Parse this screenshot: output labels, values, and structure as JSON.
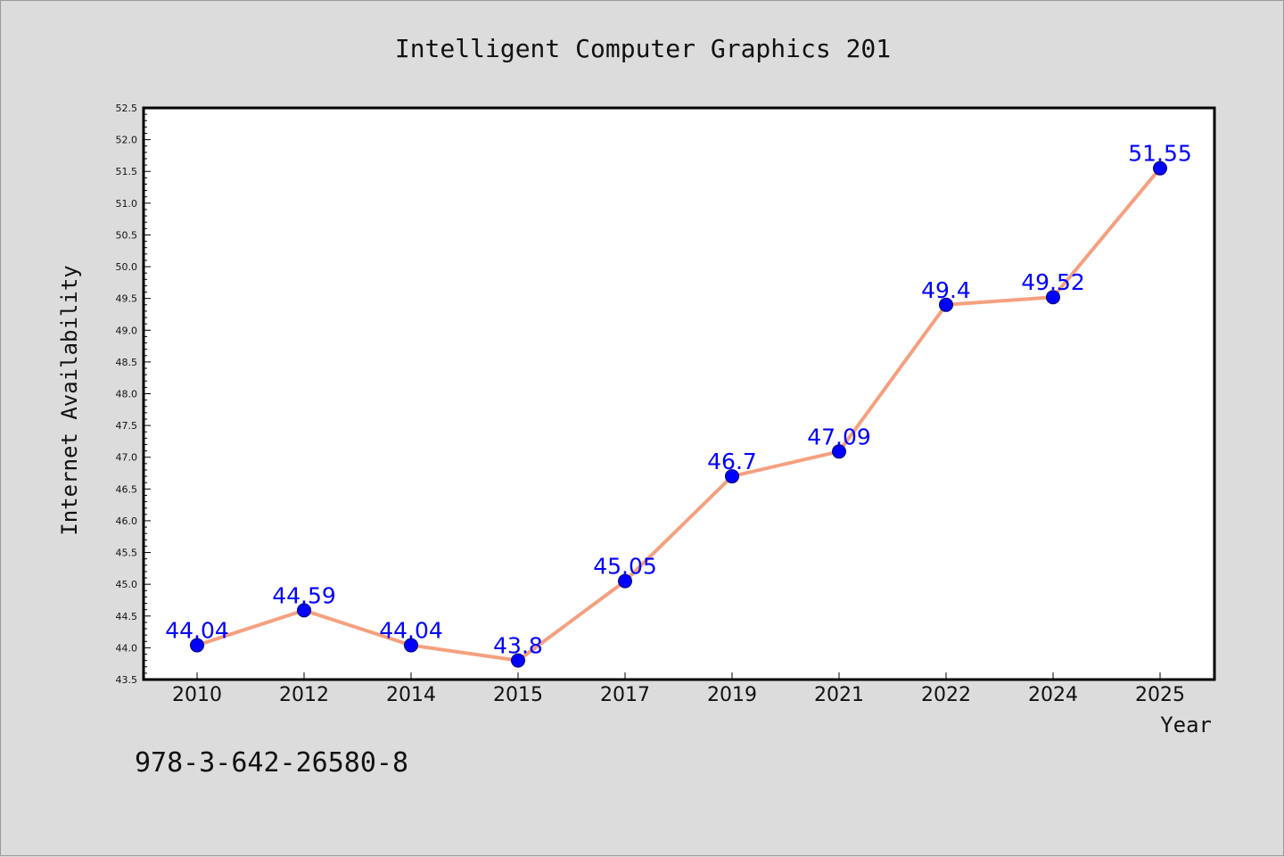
{
  "chart_data": {
    "type": "line",
    "title": "Intelligent Computer Graphics 201",
    "xlabel": "Year",
    "ylabel": "Internet Availability",
    "categories": [
      "2010",
      "2012",
      "2014",
      "2015",
      "2017",
      "2019",
      "2021",
      "2022",
      "2024",
      "2025"
    ],
    "data_labels": [
      "44.04",
      "44.59",
      "44.04",
      "43.8",
      "45.05",
      "46.7",
      "47.09",
      "49.4",
      "49.52",
      "51.55"
    ],
    "series": [
      {
        "values": [
          44.04,
          44.59,
          44.04,
          43.8,
          45.05,
          46.7,
          47.09,
          49.4,
          49.52,
          51.55
        ],
        "line_color": "#f5a07f",
        "marker_color": "#0000ff"
      }
    ],
    "ylim": [
      43.5,
      52.5
    ],
    "yticks": [
      "43.5",
      "44.0",
      "44.5",
      "45.0",
      "45.5",
      "46.0",
      "46.5",
      "47.0",
      "47.5",
      "48.0",
      "48.5",
      "49.0",
      "49.5",
      "50.0",
      "50.5",
      "51.0",
      "51.5",
      "52.0",
      "52.5"
    ],
    "grid": false,
    "legend": "none"
  },
  "caption": "978-3-642-26580-8"
}
